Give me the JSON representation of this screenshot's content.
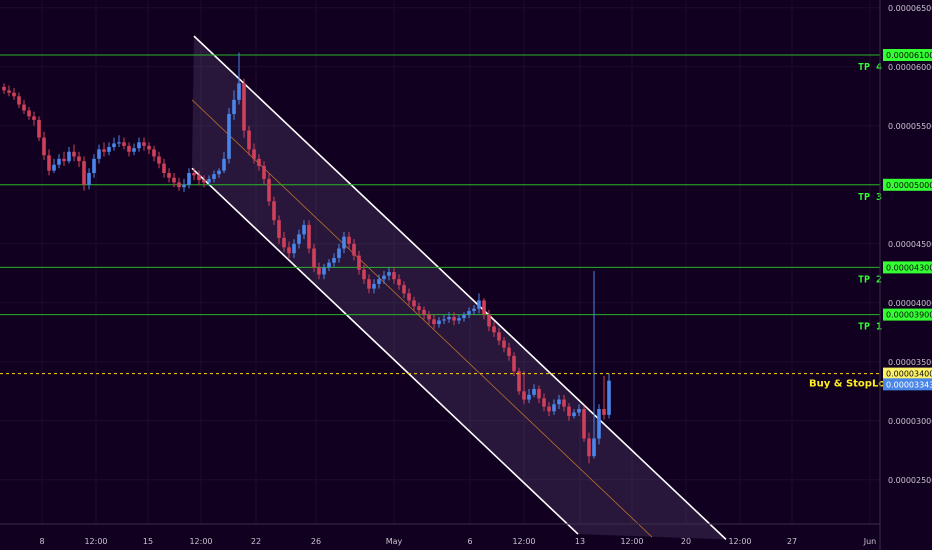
{
  "colors": {
    "background": "#120020",
    "up_candle": "#4a86e8",
    "down_candle": "#d0405a",
    "level_line": "#26b526",
    "level_tag": "#33ff33",
    "channel_line": "#ffffff",
    "channel_fill": "#7a6a9a",
    "channel_mid": "#c8782a",
    "buy_line": "#ffd400",
    "current_price_tag": "#4a86e8",
    "axis_text": "#c8c3d0"
  },
  "chart_data": {
    "type": "candlestick",
    "title": "",
    "ylim": [
      2e-05,
      6.5e-05
    ],
    "price_axis": {
      "ticks": [
        "0.00006500",
        "0.00006000",
        "0.00005500",
        "0.00004500",
        "0.00004000",
        "0.00003500",
        "0.00003000",
        "0.00002500"
      ]
    },
    "time_axis": {
      "ticks": [
        "8",
        "12:00",
        "15",
        "12:00",
        "22",
        "26",
        "May",
        "6",
        "12:00",
        "13",
        "12:00",
        "20",
        "12:00",
        "27",
        "Jun"
      ]
    },
    "levels": [
      {
        "name": "TP 4",
        "price": "0.00006100",
        "value": 6.1e-05
      },
      {
        "name": "TP 3",
        "price": "0.00005000",
        "value": 5e-05
      },
      {
        "name": "TP 2",
        "price": "0.00004300",
        "value": 4.3e-05
      },
      {
        "name": "TP 1",
        "price": "0.00003900",
        "value": 3.9e-05
      }
    ],
    "buy_level": {
      "name": "Buy & StopLoss",
      "price": "0.00003400",
      "value": 3.4e-05
    },
    "current_price": {
      "price": "0.00003343",
      "value": 3.343e-05
    },
    "descending_channel": {
      "upper": [
        [
          194,
          6.26e-05
        ],
        [
          726,
          1.995e-05
        ]
      ],
      "lower": [
        [
          192,
          5.14e-05
        ],
        [
          578,
          2.04e-05
        ]
      ],
      "middle": [
        [
          192,
          5.72e-05
        ],
        [
          652,
          2.015e-05
        ]
      ]
    },
    "candles": {
      "x": [
        4,
        9,
        14,
        19,
        24,
        29,
        34,
        39,
        44,
        49,
        54,
        59,
        64,
        69,
        74,
        79,
        84,
        89,
        94,
        99,
        104,
        109,
        114,
        119,
        124,
        129,
        134,
        139,
        144,
        149,
        154,
        159,
        164,
        169,
        174,
        179,
        184,
        189,
        194,
        199,
        204,
        209,
        214,
        219,
        224,
        229,
        234,
        239,
        244,
        249,
        254,
        259,
        264,
        269,
        274,
        279,
        284,
        289,
        294,
        299,
        304,
        309,
        314,
        319,
        324,
        329,
        334,
        339,
        344,
        349,
        354,
        359,
        364,
        369,
        374,
        379,
        384,
        389,
        394,
        399,
        404,
        409,
        414,
        419,
        424,
        429,
        434,
        439,
        444,
        449,
        454,
        459,
        464,
        469,
        474,
        479,
        484,
        489,
        494,
        499,
        504,
        509,
        514,
        519,
        524,
        529,
        534,
        539,
        544,
        549,
        554,
        559,
        564,
        569,
        574,
        579,
        584,
        589,
        594,
        599,
        604,
        609
      ],
      "open": [
        5.83,
        5.8,
        5.78,
        5.75,
        5.68,
        5.63,
        5.58,
        5.55,
        5.4,
        5.25,
        5.12,
        5.17,
        5.22,
        5.2,
        5.28,
        5.24,
        5.2,
        5.0,
        5.1,
        5.22,
        5.3,
        5.28,
        5.32,
        5.35,
        5.36,
        5.33,
        5.28,
        5.31,
        5.36,
        5.33,
        5.3,
        5.24,
        5.18,
        5.1,
        5.06,
        5.02,
        4.98,
        5.0,
        5.1,
        5.08,
        5.04,
        5.02,
        5.05,
        5.09,
        5.12,
        5.22,
        5.6,
        5.72,
        5.86,
        5.46,
        5.3,
        5.22,
        5.16,
        5.05,
        4.86,
        4.7,
        4.55,
        4.47,
        4.42,
        4.5,
        4.58,
        4.66,
        4.46,
        4.3,
        4.24,
        4.3,
        4.34,
        4.38,
        4.46,
        4.56,
        4.5,
        4.4,
        4.28,
        4.2,
        4.12,
        4.16,
        4.2,
        4.23,
        4.26,
        4.2,
        4.15,
        4.08,
        4.02,
        3.97,
        3.94,
        3.9,
        3.86,
        3.82,
        3.85,
        3.86,
        3.88,
        3.85,
        3.87,
        3.9,
        3.93,
        3.95,
        4.02,
        3.9,
        3.8,
        3.75,
        3.68,
        3.62,
        3.55,
        3.42,
        3.25,
        3.18,
        3.22,
        3.27,
        3.19,
        3.12,
        3.08,
        3.14,
        3.18,
        3.12,
        3.04,
        3.07,
        3.1,
        2.85,
        2.7,
        2.85,
        3.1,
        3.05
      ],
      "close": [
        5.8,
        5.78,
        5.75,
        5.68,
        5.63,
        5.58,
        5.55,
        5.4,
        5.25,
        5.12,
        5.17,
        5.22,
        5.2,
        5.28,
        5.24,
        5.2,
        5.0,
        5.1,
        5.22,
        5.3,
        5.28,
        5.32,
        5.35,
        5.36,
        5.33,
        5.28,
        5.31,
        5.36,
        5.33,
        5.3,
        5.24,
        5.18,
        5.1,
        5.06,
        5.02,
        4.98,
        5.0,
        5.1,
        5.08,
        5.04,
        5.02,
        5.05,
        5.09,
        5.12,
        5.22,
        5.6,
        5.72,
        5.86,
        5.46,
        5.3,
        5.22,
        5.16,
        5.05,
        4.86,
        4.7,
        4.55,
        4.47,
        4.42,
        4.5,
        4.58,
        4.66,
        4.46,
        4.3,
        4.24,
        4.3,
        4.34,
        4.38,
        4.46,
        4.56,
        4.5,
        4.4,
        4.28,
        4.2,
        4.12,
        4.16,
        4.2,
        4.23,
        4.26,
        4.2,
        4.15,
        4.08,
        4.02,
        3.97,
        3.94,
        3.9,
        3.86,
        3.82,
        3.85,
        3.86,
        3.88,
        3.85,
        3.87,
        3.9,
        3.93,
        3.95,
        4.02,
        3.9,
        3.8,
        3.75,
        3.68,
        3.62,
        3.55,
        3.42,
        3.25,
        3.18,
        3.22,
        3.27,
        3.19,
        3.12,
        3.08,
        3.14,
        3.18,
        3.12,
        3.04,
        3.07,
        3.1,
        2.85,
        2.7,
        2.85,
        3.1,
        3.05,
        3.34
      ],
      "high": [
        5.86,
        5.84,
        5.82,
        5.78,
        5.72,
        5.66,
        5.62,
        5.58,
        5.45,
        5.3,
        5.22,
        5.26,
        5.28,
        5.32,
        5.34,
        5.28,
        5.24,
        5.14,
        5.26,
        5.34,
        5.36,
        5.36,
        5.4,
        5.42,
        5.4,
        5.36,
        5.35,
        5.4,
        5.4,
        5.36,
        5.33,
        5.28,
        5.22,
        5.14,
        5.1,
        5.06,
        5.05,
        5.14,
        5.14,
        5.12,
        5.08,
        5.08,
        5.12,
        5.14,
        5.28,
        5.65,
        5.8,
        6.12,
        5.9,
        5.5,
        5.35,
        5.26,
        5.2,
        5.1,
        4.9,
        4.74,
        4.6,
        4.52,
        4.54,
        4.62,
        4.7,
        4.7,
        4.5,
        4.34,
        4.33,
        4.37,
        4.42,
        4.5,
        4.6,
        4.6,
        4.54,
        4.44,
        4.32,
        4.24,
        4.2,
        4.24,
        4.27,
        4.3,
        4.3,
        4.24,
        4.18,
        4.12,
        4.05,
        4.0,
        3.97,
        3.93,
        3.9,
        3.88,
        3.9,
        3.92,
        3.92,
        3.9,
        3.92,
        3.96,
        3.98,
        4.08,
        4.04,
        3.94,
        3.84,
        3.79,
        3.71,
        3.66,
        3.58,
        3.45,
        3.42,
        3.27,
        3.31,
        3.3,
        3.23,
        3.16,
        3.18,
        3.22,
        3.22,
        3.15,
        3.1,
        3.14,
        3.13,
        2.9,
        4.27,
        3.14,
        3.38,
        3.4
      ],
      "low": [
        5.77,
        5.75,
        5.72,
        5.65,
        5.6,
        5.55,
        5.5,
        5.37,
        5.21,
        5.08,
        5.1,
        5.14,
        5.16,
        5.18,
        5.2,
        5.15,
        4.95,
        4.96,
        5.06,
        5.18,
        5.24,
        5.25,
        5.29,
        5.32,
        5.3,
        5.24,
        5.25,
        5.28,
        5.29,
        5.26,
        5.2,
        5.14,
        5.06,
        5.02,
        4.98,
        4.95,
        4.94,
        4.97,
        5.04,
        5.0,
        4.98,
        4.99,
        5.02,
        5.06,
        5.1,
        5.18,
        5.55,
        5.68,
        5.4,
        5.25,
        5.18,
        5.12,
        5.0,
        4.82,
        4.66,
        4.5,
        4.43,
        4.38,
        4.38,
        4.46,
        4.54,
        4.42,
        4.26,
        4.2,
        4.2,
        4.27,
        4.3,
        4.34,
        4.42,
        4.46,
        4.36,
        4.24,
        4.16,
        4.08,
        4.08,
        4.12,
        4.16,
        4.19,
        4.16,
        4.11,
        4.04,
        3.98,
        3.93,
        3.9,
        3.86,
        3.82,
        3.78,
        3.79,
        3.82,
        3.83,
        3.81,
        3.82,
        3.84,
        3.87,
        3.9,
        3.91,
        3.86,
        3.76,
        3.71,
        3.64,
        3.58,
        3.51,
        3.38,
        3.22,
        3.14,
        3.15,
        3.2,
        3.15,
        3.08,
        3.04,
        3.05,
        3.1,
        3.08,
        3.0,
        3.02,
        3.04,
        2.82,
        2.64,
        2.68,
        2.8,
        3.01,
        3.02
      ]
    }
  }
}
